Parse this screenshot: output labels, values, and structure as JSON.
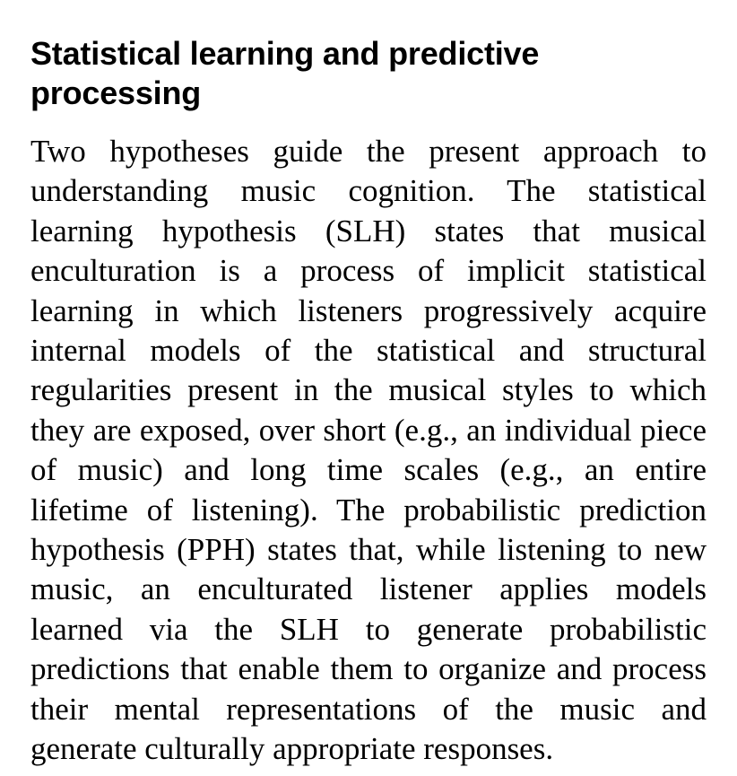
{
  "section": {
    "heading": "Statistical learning and predictive processing",
    "paragraph": "Two hypotheses guide the present approach to understanding music cognition. The statistical learning hypothesis (SLH) states that musical enculturation is a process of implicit statistical learning in which listeners progressively acquire internal models of the statistical and structural regularities present in the musical styles to which they are exposed, over short (e.g., an individual piece of music) and long time scales (e.g., an entire lifetime of listening). The probabilistic prediction hypothesis (PPH) states that, while listening to new music, an enculturated listener applies models learned via the SLH to generate probabilistic predictions that enable them to organize and process their mental representations of the music and generate culturally appropriate responses."
  }
}
